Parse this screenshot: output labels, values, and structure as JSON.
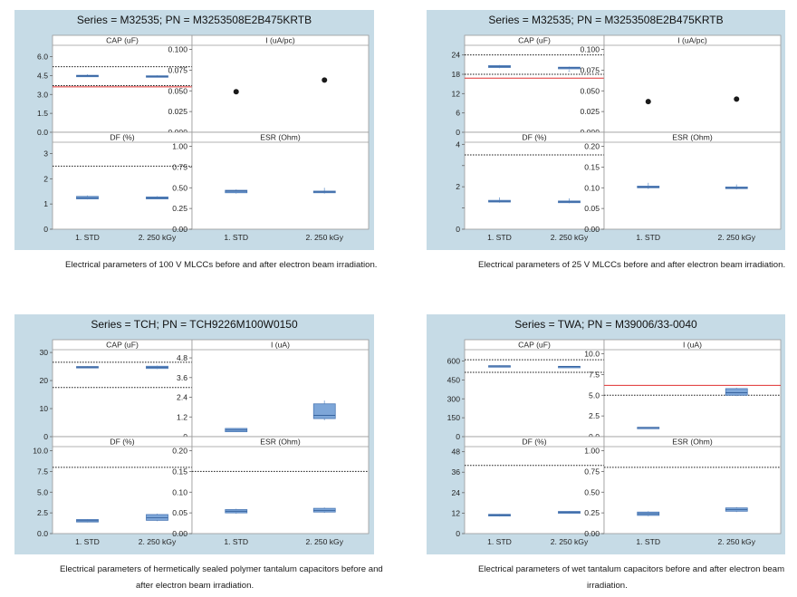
{
  "chart_data": [
    {
      "type": "boxplot",
      "title": "Series = M32535; PN = M3253508E2B475KRTB",
      "caption": "Electrical parameters of 100 V MLCCs before and after electron beam irradiation.",
      "categories": [
        "1. STD",
        "2. 250 kGy"
      ],
      "subplots": [
        {
          "label": "CAP (uF)",
          "ylim": [
            0,
            6.9
          ],
          "ticks": [
            "0.0",
            "1.5",
            "3.0",
            "4.5",
            "6.0"
          ],
          "tick_values": [
            0,
            1.5,
            3,
            4.5,
            6
          ],
          "boxes": [
            {
              "q1": 4.42,
              "median": 4.47,
              "q3": 4.52,
              "wlo": 4.4,
              "whi": 4.6
            },
            {
              "q1": 4.38,
              "median": 4.43,
              "q3": 4.48,
              "wlo": 4.36,
              "whi": 4.52
            }
          ],
          "points": [],
          "reflines": [
            {
              "y": 5.2,
              "style": "dotted",
              "color": "#222222"
            },
            {
              "y": 3.7,
              "style": "dotted",
              "color": "#222222"
            },
            {
              "y": 3.6,
              "style": "solid",
              "color": "#e03030"
            }
          ]
        },
        {
          "label": "I (uA/pc)",
          "ylim": [
            0,
            0.105
          ],
          "ticks": [
            "0.000",
            "0.025",
            "0.050",
            "0.075",
            "0.100"
          ],
          "tick_values": [
            0,
            0.025,
            0.05,
            0.075,
            0.1
          ],
          "boxes": [],
          "points": [
            {
              "cat": 0,
              "y": 0.049
            },
            {
              "cat": 1,
              "y": 0.063
            }
          ],
          "reflines": []
        },
        {
          "label": "DF (%)",
          "ylim": [
            0,
            3.45
          ],
          "ticks": [
            "0",
            "1",
            "2",
            "3"
          ],
          "tick_values": [
            0,
            1,
            2,
            3
          ],
          "boxes": [
            {
              "q1": 1.2,
              "median": 1.25,
              "q3": 1.3,
              "wlo": 1.18,
              "whi": 1.34
            },
            {
              "q1": 1.2,
              "median": 1.24,
              "q3": 1.28,
              "wlo": 1.19,
              "whi": 1.31
            }
          ],
          "points": [],
          "reflines": [
            {
              "y": 2.5,
              "style": "dotted",
              "color": "#222222"
            }
          ]
        },
        {
          "label": "ESR (Ohm)",
          "ylim": [
            0,
            1.05
          ],
          "ticks": [
            "0.00",
            "0.25",
            "0.50",
            "0.75",
            "1.00"
          ],
          "tick_values": [
            0,
            0.25,
            0.5,
            0.75,
            1
          ],
          "boxes": [
            {
              "q1": 0.44,
              "median": 0.46,
              "q3": 0.47,
              "wlo": 0.43,
              "whi": 0.48
            },
            {
              "q1": 0.44,
              "median": 0.45,
              "q3": 0.46,
              "wlo": 0.43,
              "whi": 0.5
            }
          ],
          "points": [],
          "reflines": []
        }
      ]
    },
    {
      "type": "boxplot",
      "title": "Series = M32535; PN = M3253508E2B475KRTB",
      "caption": "Electrical parameters of 25 V MLCCs before and after electron beam irradiation.",
      "categories": [
        "1. STD",
        "2. 250 kGy"
      ],
      "subplots": [
        {
          "label": "CAP (uF)",
          "ylim": [
            0,
            27
          ],
          "ticks": [
            "0",
            "6",
            "12",
            "18",
            "24"
          ],
          "tick_values": [
            0,
            6,
            12,
            18,
            24
          ],
          "boxes": [
            {
              "q1": 20.1,
              "median": 20.4,
              "q3": 20.7,
              "wlo": 19.9,
              "whi": 20.9
            },
            {
              "q1": 19.7,
              "median": 20.0,
              "q3": 20.2,
              "wlo": 19.5,
              "whi": 20.4
            }
          ],
          "points": [
            {
              "cat": 1,
              "y": 18.9,
              "small": true
            }
          ],
          "reflines": [
            {
              "y": 24,
              "style": "dotted",
              "color": "#222222"
            },
            {
              "y": 18,
              "style": "dotted",
              "color": "#222222"
            },
            {
              "y": 16.8,
              "style": "solid",
              "color": "#e03030"
            }
          ]
        },
        {
          "label": "I (uA/pc)",
          "ylim": [
            0,
            0.105
          ],
          "ticks": [
            "0.000",
            "0.025",
            "0.050",
            "0.075",
            "0.100"
          ],
          "tick_values": [
            0,
            0.025,
            0.05,
            0.075,
            0.1
          ],
          "boxes": [],
          "points": [
            {
              "cat": 0,
              "y": 0.037
            },
            {
              "cat": 1,
              "y": 0.04
            }
          ],
          "reflines": []
        },
        {
          "label": "DF (%)",
          "ylim": [
            0,
            4.1
          ],
          "ticks": [
            "0",
            "2",
            "4"
          ],
          "tick_values": [
            0,
            2,
            4
          ],
          "extra_ticks": [
            1,
            3
          ],
          "boxes": [
            {
              "q1": 1.28,
              "median": 1.32,
              "q3": 1.36,
              "wlo": 1.25,
              "whi": 1.5
            },
            {
              "q1": 1.25,
              "median": 1.29,
              "q3": 1.33,
              "wlo": 1.22,
              "whi": 1.45
            }
          ],
          "points": [],
          "reflines": [
            {
              "y": 3.5,
              "style": "dotted",
              "color": "#222222"
            }
          ]
        },
        {
          "label": "ESR (Ohm)",
          "ylim": [
            0,
            0.21
          ],
          "ticks": [
            "0.00",
            "0.05",
            "0.10",
            "0.15",
            "0.20"
          ],
          "tick_values": [
            0,
            0.05,
            0.1,
            0.15,
            0.2
          ],
          "boxes": [
            {
              "q1": 0.1,
              "median": 0.102,
              "q3": 0.104,
              "wlo": 0.097,
              "whi": 0.112
            },
            {
              "q1": 0.098,
              "median": 0.1,
              "q3": 0.102,
              "wlo": 0.096,
              "whi": 0.108
            }
          ],
          "points": [],
          "reflines": []
        }
      ]
    },
    {
      "type": "boxplot",
      "title": "Series = TCH; PN = TCH9226M100W0150",
      "caption": "Electrical parameters of hermetically sealed polymer tantalum capacitors before and after electron beam irradiation.",
      "caption_lines": [
        "Electrical parameters of hermetically sealed polymer tantalum capacitors before and",
        "after electron beam irradiation."
      ],
      "categories": [
        "1. STD",
        "2. 250 kGy"
      ],
      "subplots": [
        {
          "label": "CAP (uF)",
          "ylim": [
            0,
            31
          ],
          "ticks": [
            "0",
            "10",
            "20",
            "30"
          ],
          "tick_values": [
            0,
            10,
            20,
            30
          ],
          "boxes": [
            {
              "q1": 24.6,
              "median": 24.8,
              "q3": 25.0,
              "wlo": 24.5,
              "whi": 25.1
            },
            {
              "q1": 24.3,
              "median": 24.7,
              "q3": 25.1,
              "wlo": 24.1,
              "whi": 25.3
            }
          ],
          "points": [],
          "reflines": [
            {
              "y": 26.5,
              "style": "dotted",
              "color": "#222222"
            },
            {
              "y": 17.5,
              "style": "dotted",
              "color": "#222222"
            }
          ]
        },
        {
          "label": "I (uA)",
          "ylim": [
            0,
            5.3
          ],
          "ticks": [
            "0",
            "1.2",
            "2.4",
            "3.6",
            "4.8"
          ],
          "tick_values": [
            0,
            1.2,
            2.4,
            3.6,
            4.8
          ],
          "boxes": [
            {
              "q1": 0.3,
              "median": 0.4,
              "q3": 0.5,
              "wlo": 0.28,
              "whi": 0.52
            },
            {
              "q1": 1.1,
              "median": 1.3,
              "q3": 2.0,
              "wlo": 1.0,
              "whi": 2.2
            }
          ],
          "points": [],
          "reflines": []
        },
        {
          "label": "DF (%)",
          "ylim": [
            0,
            10.5
          ],
          "ticks": [
            "0.0",
            "2.5",
            "5.0",
            "7.5",
            "10.0"
          ],
          "tick_values": [
            0,
            2.5,
            5,
            7.5,
            10
          ],
          "boxes": [
            {
              "q1": 1.4,
              "median": 1.55,
              "q3": 1.7,
              "wlo": 1.35,
              "whi": 1.75
            },
            {
              "q1": 1.6,
              "median": 1.9,
              "q3": 2.3,
              "wlo": 1.5,
              "whi": 2.4
            }
          ],
          "points": [],
          "reflines": [
            {
              "y": 8,
              "style": "dotted",
              "color": "#222222"
            }
          ]
        },
        {
          "label": "ESR (Ohm)",
          "ylim": [
            0,
            0.21
          ],
          "ticks": [
            "0.00",
            "0.05",
            "0.10",
            "0.15",
            "0.20"
          ],
          "tick_values": [
            0,
            0.05,
            0.1,
            0.15,
            0.2
          ],
          "boxes": [
            {
              "q1": 0.05,
              "median": 0.054,
              "q3": 0.058,
              "wlo": 0.048,
              "whi": 0.06
            },
            {
              "q1": 0.052,
              "median": 0.056,
              "q3": 0.061,
              "wlo": 0.05,
              "whi": 0.063
            }
          ],
          "points": [],
          "reflines": [
            {
              "y": 0.15,
              "style": "dotted",
              "color": "#222222"
            }
          ]
        }
      ]
    },
    {
      "type": "boxplot",
      "title": "Series = TWA; PN = M39006/33-0040",
      "caption": "Electrical parameters of wet tantalum capacitors before and after electron beam irradiation.",
      "caption_lines": [
        "Electrical parameters of wet tantalum capacitors before and after electron beam",
        "irradiation."
      ],
      "categories": [
        "1. STD",
        "2. 250 kGy"
      ],
      "subplots": [
        {
          "label": "CAP (uF)",
          "ylim": [
            0,
            690
          ],
          "ticks": [
            "0",
            "150",
            "300",
            "450",
            "600"
          ],
          "tick_values": [
            0,
            150,
            300,
            450,
            600
          ],
          "boxes": [
            {
              "q1": 557,
              "median": 560,
              "q3": 563,
              "wlo": 555,
              "whi": 565
            },
            {
              "q1": 552,
              "median": 555,
              "q3": 558,
              "wlo": 550,
              "whi": 560
            }
          ],
          "points": [],
          "reflines": [
            {
              "y": 610,
              "style": "dotted",
              "color": "#222222"
            },
            {
              "y": 510,
              "style": "dotted",
              "color": "#222222"
            }
          ]
        },
        {
          "label": "I (uA)",
          "ylim": [
            0,
            10.5
          ],
          "ticks": [
            "0.0",
            "2.5",
            "5.0",
            "7.5",
            "10.0"
          ],
          "tick_values": [
            0,
            2.5,
            5,
            7.5,
            10
          ],
          "boxes": [
            {
              "q1": 1.07,
              "median": 1.1,
              "q3": 1.13,
              "wlo": 1.05,
              "whi": 1.15
            },
            {
              "q1": 5.0,
              "median": 5.3,
              "q3": 5.8,
              "wlo": 4.9,
              "whi": 5.9
            }
          ],
          "points": [],
          "reflines": [
            {
              "y": 6.2,
              "style": "solid",
              "color": "#e03030"
            },
            {
              "y": 5.0,
              "style": "dotted",
              "color": "#222222"
            }
          ]
        },
        {
          "label": "DF (%)",
          "ylim": [
            0,
            51
          ],
          "ticks": [
            "0",
            "12",
            "24",
            "36",
            "48"
          ],
          "tick_values": [
            0,
            12,
            24,
            36,
            48
          ],
          "boxes": [
            {
              "q1": 10.3,
              "median": 10.8,
              "q3": 11.3,
              "wlo": 10.0,
              "whi": 11.5
            },
            {
              "q1": 11.9,
              "median": 12.5,
              "q3": 13.0,
              "wlo": 11.6,
              "whi": 13.2
            }
          ],
          "points": [],
          "reflines": [
            {
              "y": 40,
              "style": "dotted",
              "color": "#222222"
            }
          ]
        },
        {
          "label": "ESR (Ohm)",
          "ylim": [
            0,
            1.05
          ],
          "ticks": [
            "0.00",
            "0.25",
            "0.50",
            "0.75",
            "1.00"
          ],
          "tick_values": [
            0,
            0.25,
            0.5,
            0.75,
            1
          ],
          "boxes": [
            {
              "q1": 0.22,
              "median": 0.24,
              "q3": 0.26,
              "wlo": 0.21,
              "whi": 0.27
            },
            {
              "q1": 0.27,
              "median": 0.29,
              "q3": 0.31,
              "wlo": 0.26,
              "whi": 0.32
            }
          ],
          "points": [],
          "reflines": [
            {
              "y": 0.8,
              "style": "dotted",
              "color": "#222222"
            }
          ]
        }
      ]
    }
  ],
  "colors": {
    "box_fill": "#7da6d8",
    "box_edge": "#4a78b5",
    "whisker": "#8fb0d8",
    "panel_bg": "#c6dbe6",
    "red_line": "#e03030",
    "point": "#1a1a1a"
  }
}
